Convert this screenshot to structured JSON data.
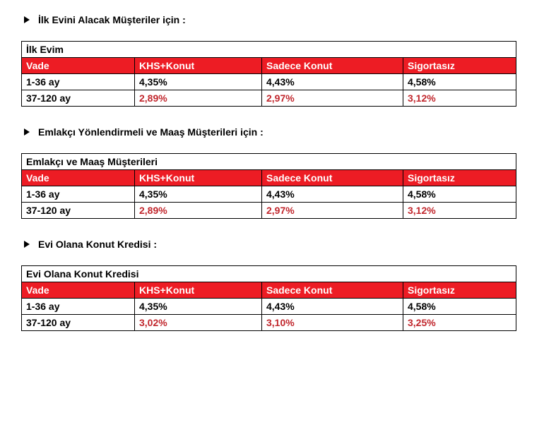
{
  "colors": {
    "header_bg": "#ed1c24",
    "header_fg": "#ffffff",
    "highlight_text": "#c1272d",
    "border": "#000000",
    "background": "#ffffff",
    "text": "#000000"
  },
  "typography": {
    "font_family": "Arial, sans-serif",
    "base_fontsize": 14,
    "weight": "bold"
  },
  "sections": [
    {
      "heading": "İlk Evini Alacak Müşteriler için :",
      "table": {
        "title": "İlk Evim",
        "columns": [
          "Vade",
          "KHS+Konut",
          "Sadece Konut",
          "Sigortasız"
        ],
        "rows": [
          {
            "cells": [
              "1-36 ay",
              "4,35%",
              "4,43%",
              "4,58%"
            ],
            "highlight": false
          },
          {
            "cells": [
              "37-120 ay",
              "2,89%",
              "2,97%",
              "3,12%"
            ],
            "highlight": true
          }
        ]
      }
    },
    {
      "heading": "Emlakçı Yönlendirmeli ve Maaş Müşterileri için :",
      "table": {
        "title": "Emlakçı ve Maaş Müşterileri",
        "columns": [
          "Vade",
          "KHS+Konut",
          "Sadece Konut",
          "Sigortasız"
        ],
        "rows": [
          {
            "cells": [
              "1-36 ay",
              "4,35%",
              "4,43%",
              "4,58%"
            ],
            "highlight": false
          },
          {
            "cells": [
              "37-120 ay",
              "2,89%",
              "2,97%",
              "3,12%"
            ],
            "highlight": true
          }
        ]
      }
    },
    {
      "heading": "Evi Olana Konut Kredisi :",
      "table": {
        "title": "Evi Olana Konut Kredisi",
        "columns": [
          "Vade",
          "KHS+Konut",
          "Sadece Konut",
          "Sigortasız"
        ],
        "rows": [
          {
            "cells": [
              "1-36 ay",
              "4,35%",
              "4,43%",
              "4,58%"
            ],
            "highlight": false
          },
          {
            "cells": [
              "37-120 ay",
              "3,02%",
              "3,10%",
              "3,25%"
            ],
            "highlight": true
          }
        ]
      }
    }
  ]
}
